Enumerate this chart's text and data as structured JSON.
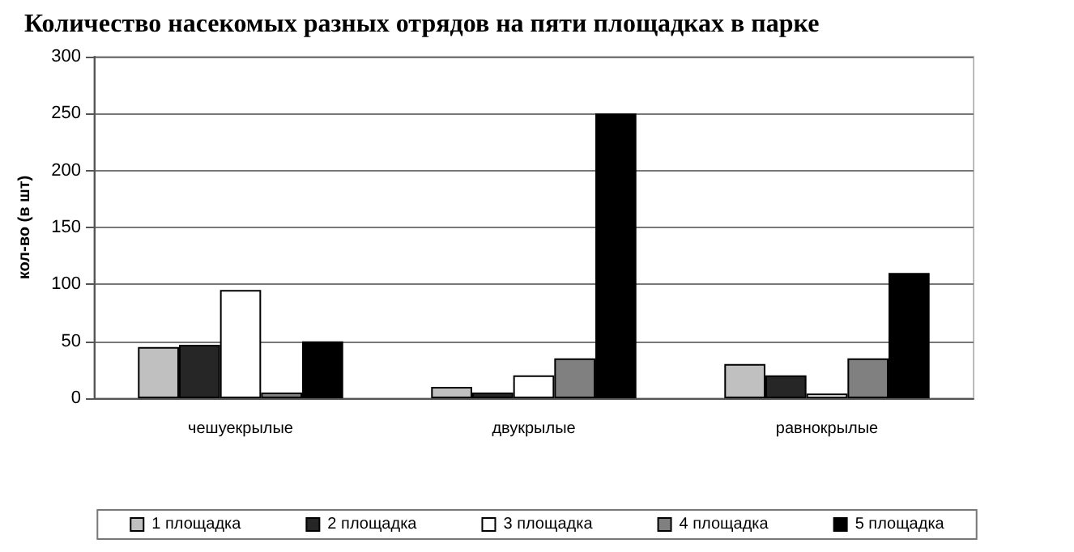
{
  "chart_data": {
    "type": "bar",
    "title": "Количество насекомых разных отрядов на пяти площадках в парке",
    "ylabel": "кол-во (в шт)",
    "categories": [
      "чешуекрылые",
      "двукрылые",
      "равнокрылые"
    ],
    "series": [
      {
        "name": "1 площадка",
        "color": "#c0c0c0",
        "values": [
          45,
          10,
          30
        ]
      },
      {
        "name": "2 площадка",
        "color": "#262626",
        "values": [
          47,
          5,
          20
        ]
      },
      {
        "name": "3 площадка",
        "color": "#ffffff",
        "values": [
          95,
          20,
          4
        ]
      },
      {
        "name": "4 площадка",
        "color": "#808080",
        "values": [
          5,
          35,
          35
        ]
      },
      {
        "name": "5 площадка",
        "color": "#000000",
        "values": [
          50,
          250,
          110
        ]
      }
    ],
    "ylim": [
      0,
      300
    ],
    "yticks": [
      0,
      50,
      100,
      150,
      200,
      250,
      300
    ],
    "grid": "y",
    "legend": "bottom"
  }
}
